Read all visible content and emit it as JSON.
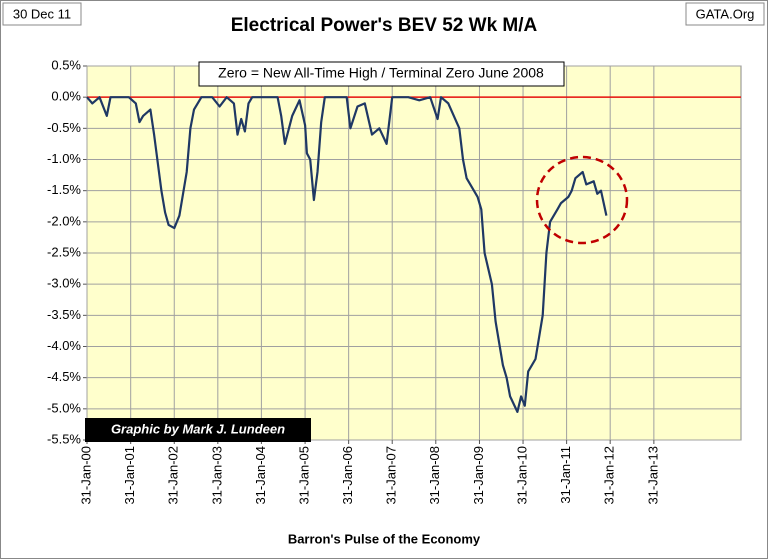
{
  "chart_data": {
    "type": "line",
    "title": "Electrical Power's BEV 52 Wk M/A",
    "date_label": "30 Dec 11",
    "source": "GATA.Org",
    "annotation": "Zero = New All-Time High / Terminal Zero June 2008",
    "credit": "Graphic by Mark J. Lundeen",
    "x_label": "Barron's Pulse of the Economy",
    "color": "#1f3864",
    "reference_line": {
      "value": 0,
      "color": "#e8100c"
    },
    "grid": true,
    "xlim": [
      "2000-01-31",
      "2015-01-31"
    ],
    "xticks": [
      {
        "value": "2000-01-31",
        "label": "31-Jan-00"
      },
      {
        "value": "2001-01-31",
        "label": "31-Jan-01"
      },
      {
        "value": "2002-01-31",
        "label": "31-Jan-02"
      },
      {
        "value": "2003-01-31",
        "label": "31-Jan-03"
      },
      {
        "value": "2004-01-31",
        "label": "31-Jan-04"
      },
      {
        "value": "2005-01-31",
        "label": "31-Jan-05"
      },
      {
        "value": "2006-01-31",
        "label": "31-Jan-06"
      },
      {
        "value": "2007-01-31",
        "label": "31-Jan-07"
      },
      {
        "value": "2008-01-31",
        "label": "31-Jan-08"
      },
      {
        "value": "2009-01-31",
        "label": "31-Jan-09"
      },
      {
        "value": "2010-01-31",
        "label": "31-Jan-10"
      },
      {
        "value": "2011-01-31",
        "label": "31-Jan-11"
      },
      {
        "value": "2012-01-31",
        "label": "31-Jan-12"
      },
      {
        "value": "2013-01-31",
        "label": "31-Jan-13"
      }
    ],
    "ylim": [
      -5.5,
      0.5
    ],
    "yticks": [
      {
        "value": 0.5,
        "label": "0.5%"
      },
      {
        "value": 0,
        "label": "0.0%"
      },
      {
        "value": -0.5,
        "label": "-0.5%"
      },
      {
        "value": -1,
        "label": "-1.0%"
      },
      {
        "value": -1.5,
        "label": "-1.5%"
      },
      {
        "value": -2,
        "label": "-2.0%"
      },
      {
        "value": -2.5,
        "label": "-2.5%"
      },
      {
        "value": -3,
        "label": "-3.0%"
      },
      {
        "value": -3.5,
        "label": "-3.5%"
      },
      {
        "value": -4,
        "label": "-4.0%"
      },
      {
        "value": -4.5,
        "label": "-4.5%"
      },
      {
        "value": -5,
        "label": "-5.0%"
      },
      {
        "value": -5.5,
        "label": "-5.5%"
      }
    ],
    "x": [
      "2000-01-31",
      "2000-03-15",
      "2000-05-15",
      "2000-07-15",
      "2000-08-15",
      "2000-12-15",
      "2001-01-15",
      "2001-03-15",
      "2001-04-15",
      "2001-05-15",
      "2001-07-15",
      "2001-08-15",
      "2001-10-15",
      "2001-11-15",
      "2001-12-15",
      "2002-01-31",
      "2002-03-15",
      "2002-05-15",
      "2002-06-15",
      "2002-07-15",
      "2002-09-15",
      "2002-12-15",
      "2003-02-15",
      "2003-04-15",
      "2003-06-15",
      "2003-07-15",
      "2003-08-15",
      "2003-09-15",
      "2003-10-15",
      "2003-11-15",
      "2004-06-15",
      "2004-07-15",
      "2004-08-15",
      "2004-10-15",
      "2004-12-15",
      "2005-01-31",
      "2005-02-15",
      "2005-03-15",
      "2005-04-15",
      "2005-05-15",
      "2005-06-15",
      "2005-07-15",
      "2005-12-15",
      "2006-01-15",
      "2006-02-15",
      "2006-04-15",
      "2006-06-15",
      "2006-08-15",
      "2006-10-15",
      "2006-12-15",
      "2007-01-31",
      "2007-06-15",
      "2007-09-15",
      "2007-12-15",
      "2008-02-15",
      "2008-03-15",
      "2008-05-15",
      "2008-08-15",
      "2008-09-15",
      "2008-10-15",
      "2009-01-15",
      "2009-02-15",
      "2009-03-15",
      "2009-05-15",
      "2009-06-15",
      "2009-08-15",
      "2009-09-15",
      "2009-10-15",
      "2009-12-15",
      "2010-01-15",
      "2010-02-15",
      "2010-03-15",
      "2010-04-15",
      "2010-05-15",
      "2010-07-15",
      "2010-08-15",
      "2010-09-15",
      "2010-11-15",
      "2010-12-15",
      "2011-02-15",
      "2011-03-15",
      "2011-04-15",
      "2011-06-15",
      "2011-07-15",
      "2011-09-15",
      "2011-10-15",
      "2011-11-15",
      "2011-12-30"
    ],
    "values": [
      0,
      -0.1,
      0,
      -0.3,
      0,
      0,
      0,
      -0.1,
      -0.4,
      -0.3,
      -0.2,
      -0.6,
      -1.5,
      -1.85,
      -2.05,
      -2.1,
      -1.9,
      -1.2,
      -0.5,
      -0.2,
      0,
      0,
      -0.15,
      0,
      -0.1,
      -0.6,
      -0.35,
      -0.55,
      -0.1,
      0,
      0,
      -0.3,
      -0.75,
      -0.3,
      -0.05,
      -0.45,
      -0.9,
      -1,
      -1.65,
      -1.2,
      -0.4,
      0,
      0,
      0,
      -0.5,
      -0.15,
      -0.1,
      -0.6,
      -0.5,
      -0.75,
      0,
      0,
      -0.05,
      0,
      -0.35,
      0,
      -0.1,
      -0.5,
      -1,
      -1.3,
      -1.6,
      -1.8,
      -2.5,
      -3,
      -3.6,
      -4.3,
      -4.5,
      -4.8,
      -5.05,
      -4.8,
      -4.95,
      -4.4,
      -4.3,
      -4.2,
      -3.5,
      -2.5,
      -2,
      -1.8,
      -1.7,
      -1.6,
      -1.5,
      -1.3,
      -1.2,
      -1.4,
      -1.35,
      -1.55,
      -1.5,
      -1.9
    ]
  }
}
